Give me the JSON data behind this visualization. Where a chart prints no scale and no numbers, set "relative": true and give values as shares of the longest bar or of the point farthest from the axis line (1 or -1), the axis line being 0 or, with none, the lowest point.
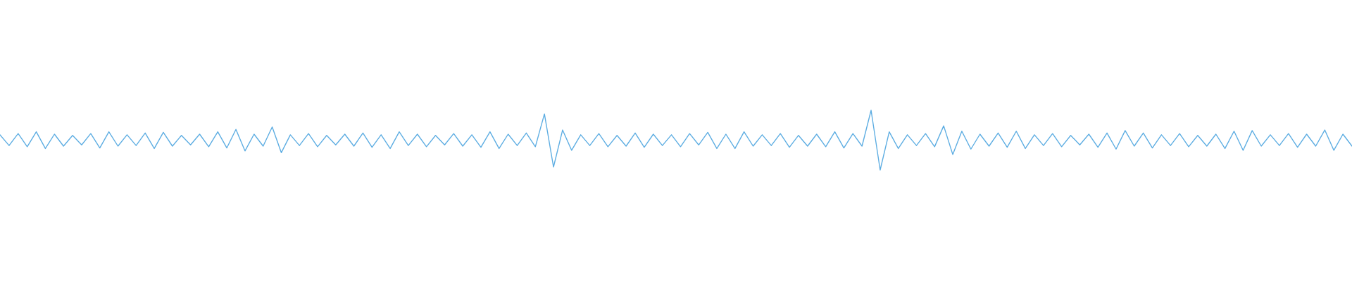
{
  "chart_data": {
    "type": "line",
    "relative": true,
    "tick_labels": false,
    "color": "#5dade2",
    "categories": [
      null,
      null,
      null,
      null,
      null,
      null,
      null,
      null,
      null,
      null,
      null,
      null,
      null,
      null,
      null,
      null,
      null,
      null,
      null,
      null,
      null,
      null,
      null,
      null,
      null,
      null,
      null,
      null,
      null,
      null,
      null,
      null,
      null,
      null,
      null,
      null,
      null,
      null,
      null,
      null,
      null,
      null,
      null,
      null,
      null,
      null,
      null,
      null,
      null,
      null,
      null,
      null,
      null,
      null,
      null,
      null,
      null,
      null,
      null,
      null,
      null,
      null,
      null,
      null,
      null,
      null,
      null,
      null,
      null,
      null,
      null,
      null,
      null,
      null,
      null,
      null,
      null,
      null,
      null,
      null,
      null,
      null,
      null,
      null,
      null,
      null,
      null,
      null,
      null,
      null,
      null,
      null,
      null,
      null,
      null,
      null,
      null,
      null,
      null,
      null,
      null,
      null,
      null,
      null,
      null,
      null,
      null,
      null,
      null,
      null,
      null,
      null,
      null,
      null,
      null,
      null,
      null,
      null,
      null,
      null,
      null,
      null,
      null,
      null,
      null,
      null,
      null,
      null,
      null,
      null,
      null,
      null,
      null,
      null,
      null,
      null,
      null,
      null,
      null,
      null,
      null,
      null,
      null,
      null,
      null,
      null,
      null,
      null,
      null,
      null
    ],
    "values": [
      0.59,
      0.41,
      0.61,
      0.39,
      0.64,
      0.36,
      0.6,
      0.4,
      0.58,
      0.42,
      0.61,
      0.37,
      0.64,
      0.4,
      0.59,
      0.41,
      0.62,
      0.36,
      0.63,
      0.4,
      0.58,
      0.42,
      0.6,
      0.39,
      0.64,
      0.37,
      0.68,
      0.32,
      0.6,
      0.4,
      0.72,
      0.29,
      0.59,
      0.41,
      0.61,
      0.39,
      0.58,
      0.42,
      0.6,
      0.4,
      0.62,
      0.38,
      0.59,
      0.36,
      0.64,
      0.41,
      0.6,
      0.39,
      0.58,
      0.42,
      0.61,
      0.4,
      0.59,
      0.38,
      0.64,
      0.36,
      0.6,
      0.41,
      0.62,
      0.39,
      0.94,
      0.05,
      0.67,
      0.33,
      0.59,
      0.41,
      0.61,
      0.39,
      0.58,
      0.4,
      0.62,
      0.38,
      0.6,
      0.41,
      0.59,
      0.39,
      0.61,
      0.42,
      0.63,
      0.36,
      0.6,
      0.36,
      0.64,
      0.4,
      0.59,
      0.41,
      0.61,
      0.38,
      0.58,
      0.4,
      0.6,
      0.39,
      0.64,
      0.37,
      0.61,
      0.4,
      1.0,
      0.0,
      0.64,
      0.36,
      0.59,
      0.41,
      0.61,
      0.39,
      0.74,
      0.26,
      0.65,
      0.35,
      0.6,
      0.4,
      0.62,
      0.38,
      0.65,
      0.36,
      0.59,
      0.41,
      0.61,
      0.39,
      0.58,
      0.42,
      0.6,
      0.38,
      0.62,
      0.35,
      0.66,
      0.4,
      0.62,
      0.37,
      0.59,
      0.41,
      0.61,
      0.39,
      0.58,
      0.4,
      0.6,
      0.36,
      0.65,
      0.33,
      0.66,
      0.4,
      0.59,
      0.41,
      0.61,
      0.38,
      0.6,
      0.4,
      0.67,
      0.33,
      0.6,
      0.4
    ]
  }
}
